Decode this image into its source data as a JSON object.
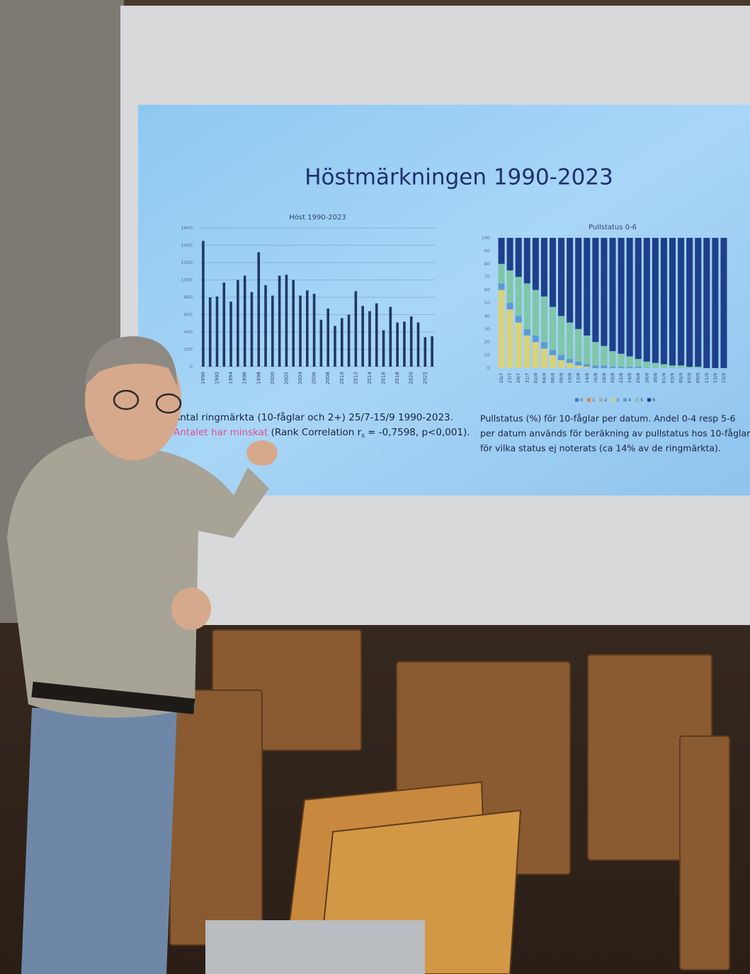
{
  "slide": {
    "title": "Höstmärkningen 1990-2023",
    "caption_left": [
      "Antal ringmärkta (10-fåglar och 2+) 25/7-15/9 1990-2023.",
      "Antalet har minskat",
      " (Rank Correlation r",
      "s",
      " = -0,7598, p<0,001)."
    ],
    "caption_right": [
      "Pullstatus (%) för 10-fåglar per datum. Andel 0-4 resp 5-6",
      "per datum används för beräkning av pullstatus hos 10-fåglar",
      "för vilka status ej noterats (ca 14% av de ringmärkta)."
    ]
  },
  "chart_data": [
    {
      "type": "bar",
      "title": "Höst 1990-2023",
      "categories": [
        "1990",
        null,
        "1992",
        null,
        "1994",
        null,
        "1996",
        null,
        "1998",
        null,
        "2000",
        null,
        "2002",
        null,
        "2004",
        null,
        "2006",
        null,
        "2008",
        null,
        "2010",
        null,
        "2012",
        null,
        "2014",
        null,
        "2016",
        null,
        "2018",
        null,
        "2020",
        null,
        "2022",
        null
      ],
      "values": [
        1450,
        800,
        810,
        970,
        750,
        1000,
        1050,
        860,
        1320,
        940,
        820,
        1050,
        1060,
        1000,
        820,
        880,
        840,
        540,
        670,
        470,
        560,
        600,
        870,
        700,
        640,
        730,
        420,
        690,
        510,
        520,
        580,
        510,
        340,
        350
      ],
      "color": "#1f3864",
      "ylim": [
        0,
        1600
      ],
      "yticks": [
        0,
        200,
        400,
        600,
        800,
        1000,
        1200,
        1400,
        1600
      ],
      "grid": true
    },
    {
      "type": "stacked_bar",
      "title": "Pullstatus 0-6",
      "categories": [
        "25/7",
        "27/7",
        "29/7",
        "31/7",
        "02/8",
        "04/8",
        "06/8",
        "08/8",
        "10/8",
        "12/8",
        "14/8",
        "16/8",
        "18/8",
        "20/8",
        "22/8",
        "24/8",
        "26/8",
        "28/8",
        "30/8",
        "01/9",
        "03/9",
        "05/9",
        "07/9",
        "09/9",
        "11/9",
        "13/9",
        "15/9"
      ],
      "series": [
        {
          "name": "0",
          "color": "#4472c4",
          "values": [
            0,
            0,
            0,
            0,
            0,
            0,
            0,
            0,
            0,
            0,
            0,
            0,
            0,
            0,
            0,
            0,
            0,
            0,
            0,
            0,
            0,
            0,
            0,
            0,
            0,
            0,
            0
          ]
        },
        {
          "name": "1",
          "color": "#ed7d31",
          "values": [
            0,
            0,
            0,
            0,
            0,
            0,
            0,
            0,
            0,
            0,
            0,
            0,
            0,
            0,
            0,
            0,
            0,
            0,
            0,
            0,
            0,
            0,
            0,
            0,
            0,
            0,
            0
          ]
        },
        {
          "name": "2",
          "color": "#a5a5a5",
          "values": [
            0,
            0,
            0,
            0,
            0,
            0,
            0,
            0,
            0,
            0,
            0,
            0,
            0,
            0,
            0,
            0,
            0,
            0,
            0,
            0,
            0,
            0,
            0,
            0,
            0,
            0,
            0
          ]
        },
        {
          "name": "3",
          "color": "#d9d27a",
          "values": [
            60,
            45,
            35,
            25,
            20,
            15,
            10,
            6,
            4,
            2,
            1,
            0,
            0,
            0,
            0,
            0,
            0,
            0,
            0,
            0,
            0,
            0,
            0,
            0,
            0,
            0,
            0
          ]
        },
        {
          "name": "4",
          "color": "#5b9bd5",
          "values": [
            5,
            5,
            5,
            5,
            5,
            5,
            4,
            4,
            3,
            3,
            2,
            2,
            2,
            1,
            1,
            1,
            1,
            0,
            0,
            0,
            0,
            0,
            0,
            0,
            0,
            0,
            0
          ]
        },
        {
          "name": "5",
          "color": "#7fc7a8",
          "values": [
            15,
            25,
            30,
            35,
            35,
            35,
            33,
            30,
            28,
            25,
            22,
            18,
            15,
            12,
            10,
            8,
            6,
            5,
            4,
            3,
            2,
            2,
            1,
            1,
            0,
            0,
            0
          ]
        },
        {
          "name": "6",
          "color": "#1f3f8a",
          "values": [
            20,
            25,
            30,
            35,
            40,
            45,
            53,
            60,
            65,
            70,
            75,
            80,
            83,
            87,
            89,
            91,
            93,
            95,
            96,
            97,
            98,
            98,
            99,
            99,
            100,
            100,
            100
          ]
        }
      ],
      "ylim": [
        0,
        100
      ],
      "yticks": [
        0,
        10,
        20,
        30,
        40,
        50,
        60,
        70,
        80,
        90,
        100
      ],
      "grid": false
    }
  ]
}
